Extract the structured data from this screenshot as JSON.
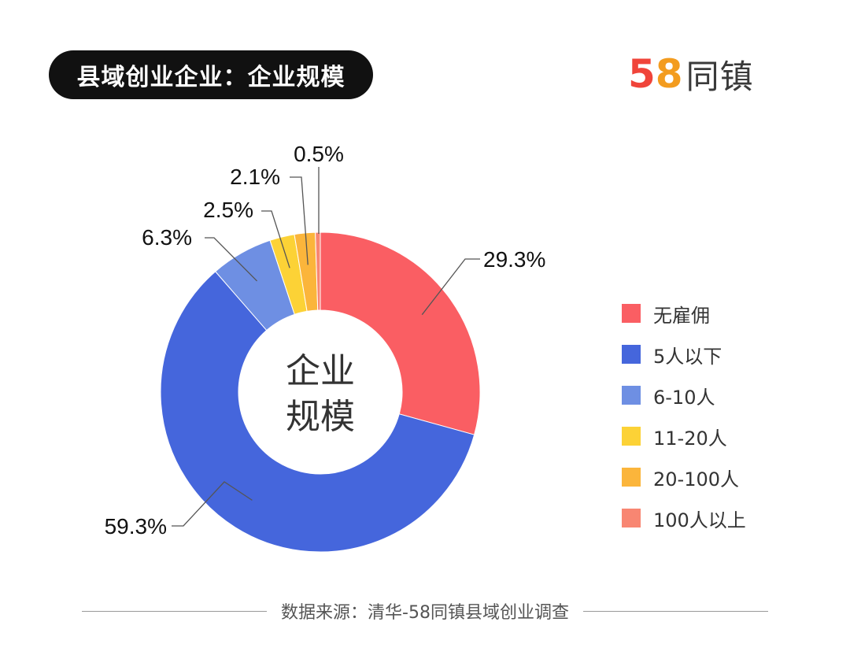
{
  "header": {
    "title": "县域创业企业：企业规模"
  },
  "logo": {
    "digits": [
      {
        "char": "5",
        "color": "#f0443a"
      },
      {
        "char": "8",
        "color": "#f39c1f"
      }
    ],
    "digit_accent_colors": [
      "#2a8fe0",
      "#3fbf4a"
    ],
    "text": "同镇"
  },
  "chart_data": {
    "type": "pie",
    "donut": true,
    "center_label": [
      "企业",
      "规模"
    ],
    "categories": [
      "无雇佣",
      "5人以下",
      "6-10人",
      "11-20人",
      "20-100人",
      "100人以上"
    ],
    "values": [
      29.3,
      59.3,
      6.3,
      2.5,
      2.1,
      0.5
    ],
    "data_labels": [
      "29.3%",
      "59.3%",
      "6.3%",
      "2.5%",
      "2.1%",
      "0.5%"
    ],
    "colors": [
      "#fa5e63",
      "#4566dc",
      "#6e8fe3",
      "#fcd236",
      "#fbb53b",
      "#f88672"
    ],
    "legend_placement": "right"
  },
  "source": {
    "text": "数据来源：清华-58同镇县域创业调查"
  }
}
